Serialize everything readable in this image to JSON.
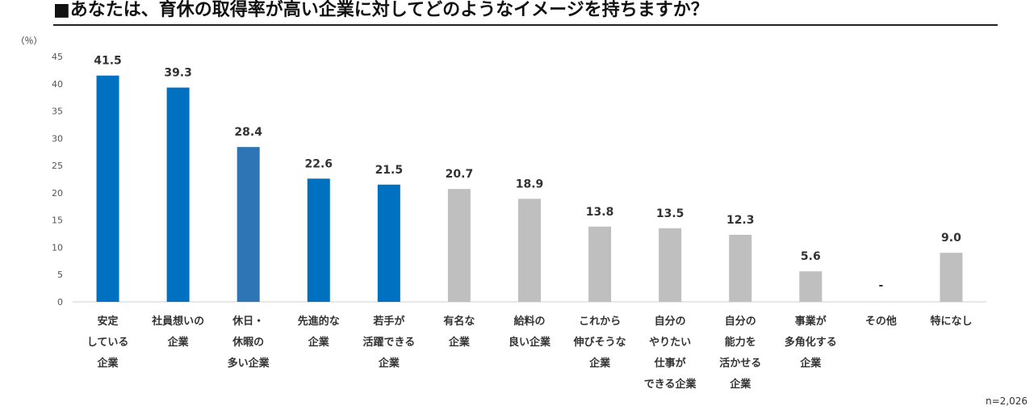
{
  "title": "■あなたは、育休の取得率が高い企業に対してどのようなイメージを持ちますか？",
  "note": "n=2,026",
  "colors": {
    "highlight": "#0070C0",
    "mid": "#2E75B6",
    "gray": "#BFBFBF",
    "axis": "#D0D0D0",
    "text": "#333333"
  },
  "chart_data": {
    "type": "bar",
    "title": "■あなたは、育休の取得率が高い企業に対してどのようなイメージを持ちますか？",
    "ylabel": "（％）",
    "ylim": [
      0,
      45
    ],
    "yticks": [
      0,
      5,
      10,
      15,
      20,
      25,
      30,
      35,
      40,
      45
    ],
    "grid": false,
    "categories": [
      [
        "安定",
        "している",
        "企業"
      ],
      [
        "社員想いの",
        "企業"
      ],
      [
        "休日・",
        "休暇の",
        "多い企業"
      ],
      [
        "先進的な",
        "企業"
      ],
      [
        "若手が",
        "活躍できる",
        "企業"
      ],
      [
        "有名な",
        "企業"
      ],
      [
        "給料の",
        "良い企業"
      ],
      [
        "これから",
        "伸びそうな",
        "企業"
      ],
      [
        "自分の",
        "やりたい",
        "仕事が",
        "できる企業"
      ],
      [
        "自分の",
        "能力を",
        "活かせる",
        "企業"
      ],
      [
        "事業が",
        "多角化する",
        "企業"
      ],
      [
        "その他"
      ],
      [
        "特になし"
      ]
    ],
    "values": [
      41.5,
      39.3,
      28.4,
      22.6,
      21.5,
      20.7,
      18.9,
      13.8,
      13.5,
      12.3,
      5.6,
      null,
      9.0
    ],
    "labels": [
      "41.5",
      "39.3",
      "28.4",
      "22.6",
      "21.5",
      "20.7",
      "18.9",
      "13.8",
      "13.5",
      "12.3",
      "5.6",
      "-",
      "9.0"
    ],
    "bar_colors": [
      "highlight",
      "highlight",
      "mid",
      "highlight",
      "highlight",
      "gray",
      "gray",
      "gray",
      "gray",
      "gray",
      "gray",
      "gray",
      "gray"
    ]
  }
}
